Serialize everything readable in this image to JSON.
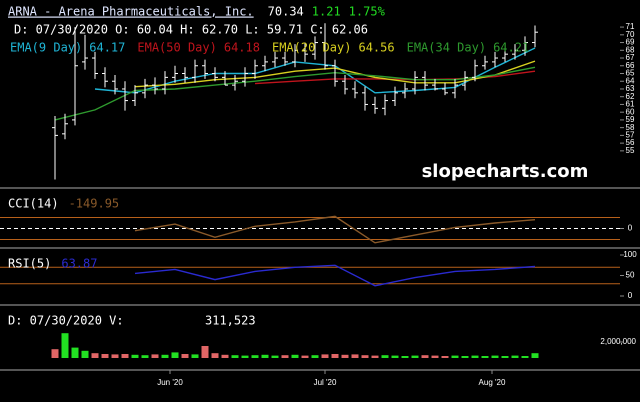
{
  "header": {
    "symbol": "ARNA - Arena Pharmaceuticals, Inc.",
    "last": "70.34",
    "change": "1.21",
    "change_pct": "1.75%",
    "bar_info": "D: 07/30/2020 O: 60.04 H: 62.70 L: 59.71 C: 62.06"
  },
  "chart_data": [
    {
      "type": "ohlc",
      "watermark": "slopecharts.com",
      "color": "#ffffff",
      "open": [
        58,
        57.2,
        59,
        66.5,
        67,
        65,
        64,
        63,
        61.5,
        62.5,
        63.5,
        63,
        64.5,
        65,
        64.5,
        66,
        65,
        64.5,
        63.5,
        64,
        65,
        66,
        66.5,
        67,
        66.5,
        68,
        67.5,
        69,
        66,
        64,
        63,
        62.5,
        61,
        60.5,
        61.5,
        62.5,
        63,
        64.5,
        63.5,
        63,
        62.5,
        63.5,
        64.5,
        66,
        66.5,
        67,
        67.5,
        68,
        69
      ],
      "high": [
        59.5,
        59.8,
        71,
        70,
        67.8,
        65.8,
        64.8,
        64,
        63.5,
        64.3,
        64.5,
        65.3,
        66,
        65.8,
        66.8,
        66.8,
        65.8,
        65.3,
        64.8,
        65.8,
        66.8,
        67.3,
        67.8,
        67.8,
        68.8,
        69,
        69.8,
        71.5,
        66.8,
        64.8,
        64,
        63.3,
        62,
        62.3,
        63.3,
        63.8,
        65.3,
        65.3,
        64.3,
        63.8,
        64.3,
        65.3,
        66.8,
        67.3,
        67.8,
        68.3,
        68.8,
        69.8,
        71.2
      ],
      "low": [
        51.3,
        56.5,
        58.3,
        65.5,
        64.3,
        63.2,
        62.3,
        60.2,
        60.8,
        61.8,
        62.3,
        62.3,
        63.8,
        63.8,
        63.8,
        64.3,
        64,
        63.5,
        62.8,
        63.3,
        64.3,
        65.3,
        65.8,
        66,
        65.8,
        66.5,
        66.8,
        65.5,
        63.3,
        62.3,
        61.8,
        60.2,
        59.8,
        59.6,
        60.8,
        61.8,
        62.3,
        62.8,
        62.8,
        62.2,
        61.8,
        62.8,
        64,
        65.5,
        65.8,
        66.5,
        66.8,
        67.3,
        68.4
      ],
      "close": [
        57,
        58.5,
        66,
        67,
        65,
        64,
        63,
        61.5,
        62.5,
        63.5,
        63,
        64.5,
        65,
        64.5,
        66,
        65,
        64.5,
        63.5,
        64,
        65,
        66,
        66.5,
        67,
        66.5,
        68,
        67.5,
        69,
        66,
        64,
        63,
        62.5,
        61,
        60.5,
        61.5,
        62.5,
        63,
        64.5,
        63.5,
        63,
        62.5,
        63.5,
        64.5,
        66,
        66.5,
        67,
        67.5,
        68,
        69,
        70.34
      ],
      "ylim": [
        50.2,
        74.5
      ],
      "yticks": [
        55,
        56,
        57,
        58,
        59,
        60,
        61,
        62,
        63,
        64,
        65,
        66,
        67,
        68,
        69,
        70,
        71
      ],
      "series": [
        {
          "name": "EMA(9 Day)",
          "legend_value": "64.17",
          "color": "#1fb5d6",
          "x": [
            4,
            8,
            12,
            16,
            20,
            24,
            28,
            32,
            36,
            40,
            44,
            48
          ],
          "values": [
            63,
            62.5,
            64,
            65,
            65,
            66.5,
            66,
            62.5,
            62.8,
            63.2,
            65.8,
            68.3
          ]
        },
        {
          "name": "EMA(50 Day)",
          "legend_value": "64.18",
          "color": "#c0141c",
          "x": [
            20,
            24,
            28,
            32,
            36,
            40,
            44,
            48
          ],
          "values": [
            63.7,
            64.0,
            64.3,
            64.3,
            64.2,
            64.3,
            64.6,
            65.3
          ]
        },
        {
          "name": "EMA(20 Day)",
          "legend_value": "64.56",
          "color": "#d8d020",
          "x": [
            8,
            12,
            16,
            20,
            24,
            28,
            32,
            36,
            40,
            44,
            48
          ],
          "values": [
            63.3,
            63.6,
            64.2,
            64.5,
            65.3,
            65.7,
            64.5,
            63.8,
            63.8,
            64.8,
            66.6
          ]
        },
        {
          "name": "EMA(34 Day)",
          "legend_value": "64.21",
          "color": "#2e9a2e",
          "x": [
            0,
            4,
            8,
            12,
            16,
            20,
            24,
            28,
            32,
            36,
            40,
            44,
            48
          ],
          "values": [
            59,
            60.3,
            62.8,
            63.0,
            63.5,
            64.0,
            64.6,
            65.1,
            64.7,
            64.2,
            64.2,
            64.8,
            65.8
          ]
        }
      ]
    },
    {
      "type": "line",
      "label": "CCI(14)",
      "value_label": "-149.95",
      "color": "#8a5a2a",
      "label_color": "#8a5a2a",
      "x": [
        8,
        12,
        16,
        20,
        24,
        28,
        32,
        36,
        40,
        44,
        48
      ],
      "values": [
        -20,
        40,
        -80,
        20,
        60,
        110,
        -130,
        -60,
        10,
        50,
        80
      ],
      "ylim": [
        -150,
        350
      ],
      "yticks": [
        0
      ],
      "reference_lines": [
        100,
        -100
      ],
      "reference_color": "#b8601a"
    },
    {
      "type": "line",
      "label": "RSI(5)",
      "value_label": "63.87",
      "color": "#2a2ad0",
      "label_color": "#2a2ad0",
      "x": [
        8,
        12,
        16,
        20,
        24,
        28,
        32,
        36,
        40,
        44,
        48
      ],
      "values": [
        55,
        65,
        40,
        60,
        70,
        75,
        25,
        45,
        60,
        65,
        72
      ],
      "ylim": [
        0,
        100
      ],
      "yticks": [
        0,
        50,
        100
      ],
      "reference_lines": [
        70,
        30
      ],
      "reference_color": "#b8601a"
    },
    {
      "type": "bar",
      "label": "D: 07/30/2020 V:",
      "value_label": "311,523",
      "up_color": "#22e022",
      "down_color": "#e06666",
      "values": [
        1100000,
        3100000,
        1300000,
        900000,
        600000,
        500000,
        450000,
        500000,
        400000,
        350000,
        450000,
        400000,
        700000,
        500000,
        450000,
        1500000,
        600000,
        400000,
        350000,
        300000,
        350000,
        400000,
        300000,
        350000,
        400000,
        300000,
        350000,
        450000,
        500000,
        400000,
        450000,
        350000,
        300000,
        350000,
        300000,
        250000,
        300000,
        350000,
        300000,
        250000,
        300000,
        250000,
        300000,
        250000,
        300000,
        250000,
        300000,
        250000,
        600000
      ],
      "ylim": [
        0,
        6000000
      ],
      "yticks": [
        {
          "value": 2000000,
          "label": "2,000,000"
        }
      ],
      "xlim": [
        -1.5,
        48.5
      ],
      "xticks": [
        {
          "value": 11.5,
          "label": "Jun '20"
        },
        {
          "value": 27,
          "label": "Jul '20"
        },
        {
          "value": 43.7,
          "label": "Aug '20"
        }
      ]
    }
  ]
}
